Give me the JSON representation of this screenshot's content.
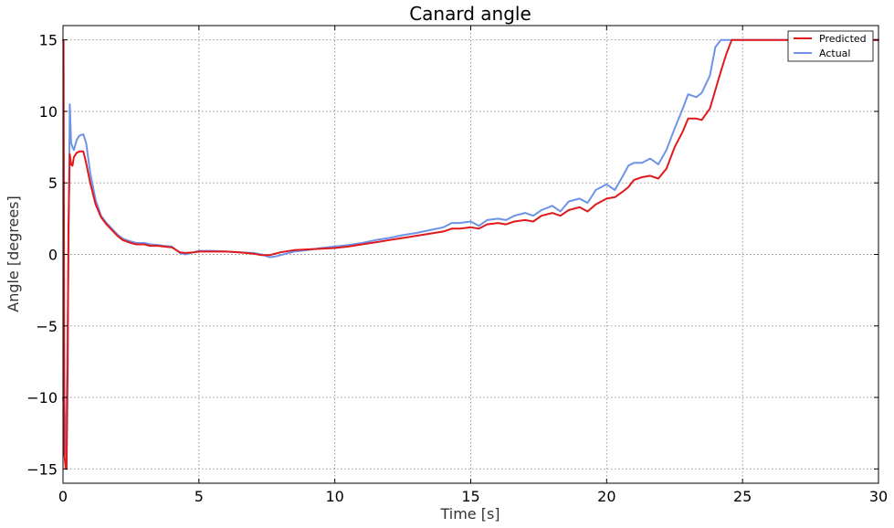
{
  "chart_data": {
    "type": "line",
    "title": "Canard angle",
    "xlabel": "Time [s]",
    "ylabel": "Angle [degrees]",
    "xlim": [
      0,
      30
    ],
    "ylim": [
      -16,
      16
    ],
    "xticks": [
      0,
      5,
      10,
      15,
      20,
      25,
      30
    ],
    "yticks": [
      -15,
      -10,
      -5,
      0,
      5,
      10,
      15
    ],
    "xtick_labels": [
      "0",
      "5",
      "10",
      "15",
      "20",
      "25",
      "30"
    ],
    "ytick_labels": [
      "−15",
      "−10",
      "−5",
      "0",
      "5",
      "10",
      "15"
    ],
    "grid": true,
    "legend_position": "top-right",
    "series": [
      {
        "name": "Predicted",
        "color": "#e0191c",
        "x": [
          0,
          0.02,
          0.05,
          0.1,
          0.13,
          0.17,
          0.2,
          0.25,
          0.3,
          0.35,
          0.4,
          0.5,
          0.6,
          0.75,
          0.85,
          1.0,
          1.2,
          1.4,
          1.6,
          1.8,
          2.0,
          2.2,
          2.5,
          2.7,
          3.0,
          3.2,
          3.5,
          3.7,
          4.0,
          4.3,
          4.5,
          4.8,
          5.0,
          5.5,
          6.0,
          6.5,
          7.0,
          7.3,
          7.6,
          8.0,
          8.5,
          9.0,
          9.5,
          10.0,
          10.5,
          11.0,
          11.5,
          12.0,
          12.5,
          13.0,
          13.5,
          14.0,
          14.3,
          14.6,
          15.0,
          15.3,
          15.6,
          16.0,
          16.3,
          16.6,
          17.0,
          17.3,
          17.6,
          18.0,
          18.3,
          18.6,
          19.0,
          19.3,
          19.6,
          20.0,
          20.3,
          20.6,
          20.8,
          21.0,
          21.3,
          21.6,
          21.9,
          22.2,
          22.5,
          22.8,
          23.0,
          23.3,
          23.5,
          23.8,
          24.0,
          24.2,
          24.4,
          24.6,
          25.0,
          26.0,
          27.0,
          28.0,
          29.0,
          30.0
        ],
        "y": [
          15,
          15,
          -14,
          -15,
          -15,
          -8,
          2,
          7,
          6.3,
          6.2,
          6.8,
          7.1,
          7.2,
          7.2,
          6.4,
          5.0,
          3.5,
          2.6,
          2.1,
          1.7,
          1.3,
          1.0,
          0.8,
          0.7,
          0.7,
          0.6,
          0.6,
          0.55,
          0.5,
          0.15,
          0.1,
          0.15,
          0.2,
          0.2,
          0.2,
          0.15,
          0.05,
          -0.05,
          -0.05,
          0.15,
          0.3,
          0.35,
          0.4,
          0.45,
          0.55,
          0.7,
          0.85,
          1.0,
          1.15,
          1.3,
          1.45,
          1.6,
          1.8,
          1.8,
          1.9,
          1.8,
          2.1,
          2.2,
          2.1,
          2.3,
          2.4,
          2.3,
          2.7,
          2.9,
          2.7,
          3.1,
          3.3,
          3.0,
          3.5,
          3.9,
          4.0,
          4.4,
          4.7,
          5.2,
          5.4,
          5.5,
          5.3,
          6.0,
          7.5,
          8.6,
          9.5,
          9.5,
          9.4,
          10.2,
          11.5,
          12.8,
          14.0,
          15.0,
          15.0,
          15.0,
          15.0,
          15.0,
          15.0,
          15.0
        ]
      },
      {
        "name": "Actual",
        "color": "#6e93e8",
        "x": [
          0,
          0.05,
          0.1,
          0.15,
          0.2,
          0.25,
          0.3,
          0.35,
          0.4,
          0.5,
          0.6,
          0.75,
          0.85,
          1.0,
          1.2,
          1.4,
          1.6,
          1.8,
          2.0,
          2.2,
          2.5,
          2.7,
          3.0,
          3.2,
          3.5,
          3.7,
          4.0,
          4.3,
          4.5,
          4.8,
          5.0,
          5.5,
          6.0,
          6.5,
          7.0,
          7.3,
          7.6,
          7.8,
          8.0,
          8.5,
          9.0,
          9.5,
          10.0,
          10.5,
          11.0,
          11.5,
          12.0,
          12.5,
          13.0,
          13.5,
          14.0,
          14.3,
          14.6,
          15.0,
          15.3,
          15.6,
          16.0,
          16.3,
          16.6,
          17.0,
          17.3,
          17.6,
          18.0,
          18.3,
          18.6,
          19.0,
          19.3,
          19.6,
          20.0,
          20.3,
          20.6,
          20.8,
          21.0,
          21.3,
          21.6,
          21.9,
          22.2,
          22.5,
          22.8,
          23.0,
          23.3,
          23.5,
          23.8,
          24.0,
          24.2,
          25.0,
          26.0,
          27.0,
          28.0,
          29.0,
          30.0
        ],
        "y": [
          -10,
          -11,
          -14,
          -8,
          0,
          10.5,
          7.8,
          7.5,
          7.3,
          8.0,
          8.3,
          8.4,
          7.8,
          5.7,
          3.8,
          2.7,
          2.2,
          1.8,
          1.4,
          1.1,
          0.9,
          0.8,
          0.8,
          0.7,
          0.65,
          0.6,
          0.55,
          0.1,
          0.0,
          0.15,
          0.25,
          0.25,
          0.2,
          0.15,
          0.1,
          0.0,
          -0.2,
          -0.15,
          -0.05,
          0.2,
          0.3,
          0.45,
          0.55,
          0.65,
          0.8,
          1.0,
          1.15,
          1.35,
          1.5,
          1.7,
          1.9,
          2.2,
          2.2,
          2.3,
          2.0,
          2.4,
          2.5,
          2.4,
          2.7,
          2.9,
          2.7,
          3.1,
          3.4,
          3.0,
          3.7,
          3.9,
          3.6,
          4.5,
          4.9,
          4.5,
          5.5,
          6.2,
          6.4,
          6.4,
          6.7,
          6.3,
          7.3,
          8.8,
          10.2,
          11.2,
          11.0,
          11.3,
          12.5,
          14.5,
          15.0,
          15.0,
          15.0,
          15.0,
          15.0,
          15.0,
          15.0
        ]
      }
    ]
  }
}
